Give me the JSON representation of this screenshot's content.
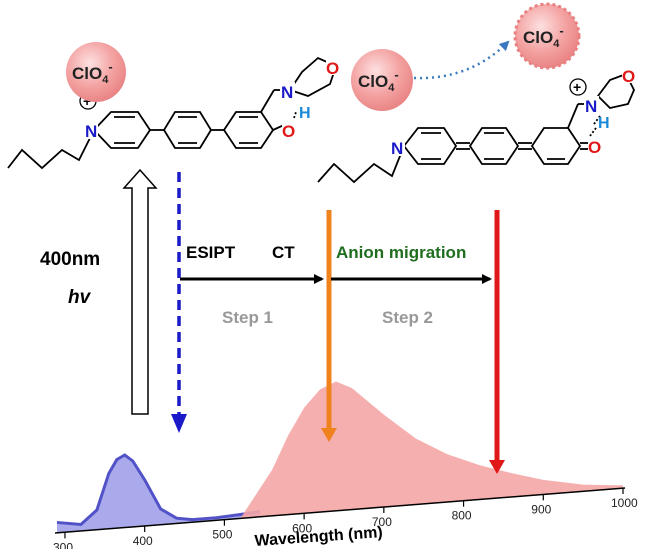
{
  "anions": {
    "left": {
      "formula": "ClO",
      "subscript": "4",
      "charge": "-"
    },
    "right_bound": {
      "formula": "ClO",
      "subscript": "4",
      "charge": "-"
    },
    "right_free": {
      "formula": "ClO",
      "subscript": "4",
      "charge": "-"
    }
  },
  "molecules": {
    "left": {
      "pyridinium_N": "N",
      "plus_sign": "+",
      "amine_N": "N",
      "morpholine_O": "O",
      "hydrogen": "H",
      "phenol_O": "O"
    },
    "right": {
      "pyridine_N": "N",
      "plus_sign": "+",
      "amine_N": "N",
      "morpholine_O": "O",
      "hydrogen": "H",
      "quinone_O": "O"
    }
  },
  "excitation": {
    "wavelength": "400nm",
    "photon": "hv"
  },
  "process": {
    "esipt": "ESIPT",
    "ct": "CT",
    "anion_migration": "Anion migration",
    "step1": "Step 1",
    "step2": "Step 2"
  },
  "colors": {
    "blue_fill": "#9a9ae8",
    "blue_line": "#5252c8",
    "pink_fill": "#f4a6a6",
    "orange": "#f0821e",
    "red": "#e01818",
    "green": "#1f6e1f",
    "anion_circle": "#f29b9b",
    "arrow_blue": "#1a1ac8",
    "dotted_link": "#3a78c0"
  },
  "chart_data": {
    "type": "area",
    "xlabel": "Wavelength (nm)",
    "ylabel": "",
    "x_ticks": [
      300,
      400,
      500,
      600,
      700,
      800,
      900,
      1000
    ],
    "xlim": [
      290,
      1000
    ],
    "series": [
      {
        "x": [
          290,
          320,
          340,
          355,
          365,
          375,
          385,
          400,
          420,
          440,
          460,
          490,
          520,
          545
        ],
        "y": [
          0.08,
          0.05,
          0.15,
          0.42,
          0.52,
          0.55,
          0.5,
          0.35,
          0.12,
          0.04,
          0.02,
          0.02,
          0.03,
          0.04
        ]
      },
      {
        "x": [
          520,
          560,
          580,
          600,
          620,
          640,
          660,
          700,
          740,
          780,
          820,
          860,
          900,
          950,
          1000
        ],
        "y": [
          0.0,
          0.35,
          0.6,
          0.8,
          0.93,
          0.98,
          0.92,
          0.7,
          0.5,
          0.36,
          0.26,
          0.18,
          0.11,
          0.05,
          0.02
        ]
      }
    ],
    "annotations": [
      {
        "label": "excitation",
        "x": 400
      },
      {
        "label": "ESIPT emission",
        "x": 450
      },
      {
        "label": "CT emission",
        "x": 630
      },
      {
        "label": "anion-migrated emission",
        "x": 845
      }
    ]
  }
}
